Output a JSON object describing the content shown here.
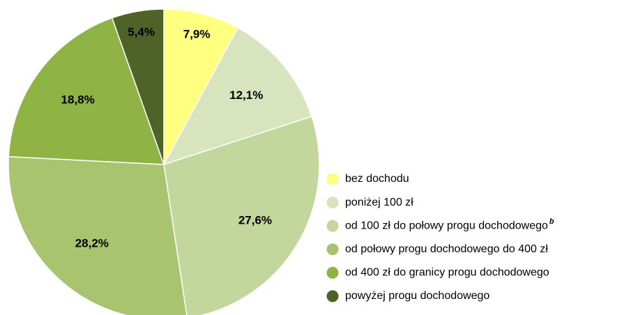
{
  "chart_data": {
    "type": "pie",
    "categories": [
      "bez dochodu",
      "poniżej 100 zł",
      "od 100 zł do połowy progu dochodowego",
      "od połowy progu dochodowego do 400 zł",
      "od 400 zł do granicy progu dochodowego",
      "powyżej progu dochodowego"
    ],
    "values": [
      7.9,
      12.1,
      27.6,
      28.2,
      18.8,
      5.4
    ],
    "value_labels": [
      "7,9%",
      "12,1%",
      "27,6%",
      "28,2%",
      "18,8%",
      "5,4%"
    ],
    "colors": [
      "#ffff80",
      "#d7e4bd",
      "#c3d69b",
      "#a9c46e",
      "#8fb344",
      "#4f6228"
    ],
    "footnotes": [
      {
        "category": 2,
        "mark": "b"
      }
    ],
    "legend": "right"
  }
}
